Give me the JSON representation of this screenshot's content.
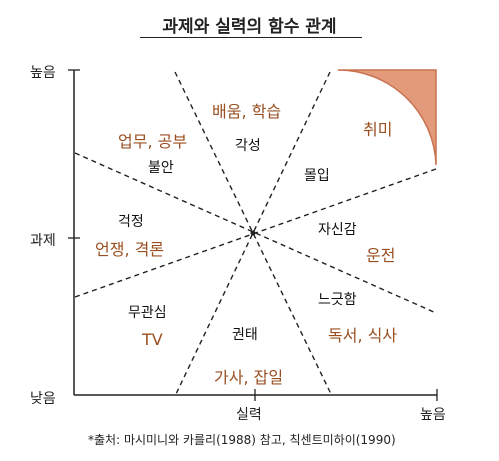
{
  "title": "과제와 실력의 함수 관계",
  "axes": {
    "y_high": "높음",
    "y_mid": "과제",
    "y_low": "낮음",
    "x_mid": "실력",
    "x_high": "높음"
  },
  "zones": [
    {
      "state": "",
      "activity": "배움, 학습"
    },
    {
      "state": "각성",
      "activity": ""
    },
    {
      "state": "불안",
      "activity": "업무, 공부"
    },
    {
      "state": "몰입",
      "activity": ""
    },
    {
      "state": "",
      "activity": "취미"
    },
    {
      "state": "걱정",
      "activity": "언쟁, 격론"
    },
    {
      "state": "자신감",
      "activity": "운전"
    },
    {
      "state": "무관심",
      "activity": "TV"
    },
    {
      "state": "느긋함",
      "activity": "독서, 식사"
    },
    {
      "state": "권태",
      "activity": "가사, 잡일"
    }
  ],
  "footnote": "*출처: 마시미니와 카를리(1988) 참고, 칙센트미하이(1990)",
  "colors": {
    "flow_fill": "#e29a7a",
    "flow_stroke": "#c8724f",
    "activity_text": "#9a4f22",
    "line": "#222222"
  }
}
